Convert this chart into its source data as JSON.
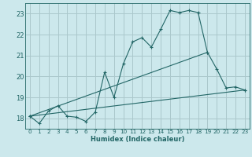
{
  "title": "",
  "xlabel": "Humidex (Indice chaleur)",
  "ylabel": "",
  "background_color": "#cce8ec",
  "grid_color": "#aac8cc",
  "line_color": "#226666",
  "xlim": [
    -0.5,
    23.5
  ],
  "ylim": [
    17.5,
    23.5
  ],
  "yticks": [
    18,
    19,
    20,
    21,
    22,
    23
  ],
  "xticks": [
    0,
    1,
    2,
    3,
    4,
    5,
    6,
    7,
    8,
    9,
    10,
    11,
    12,
    13,
    14,
    15,
    16,
    17,
    18,
    19,
    20,
    21,
    22,
    23
  ],
  "series": [
    {
      "x": [
        0,
        1,
        2,
        3,
        4,
        5,
        6,
        7,
        8,
        9,
        10,
        11,
        12,
        13,
        14,
        15,
        16,
        17,
        18,
        19,
        20,
        21,
        22,
        23
      ],
      "y": [
        18.1,
        17.75,
        18.35,
        18.6,
        18.1,
        18.05,
        17.85,
        18.3,
        20.2,
        19.0,
        20.6,
        21.65,
        21.85,
        21.4,
        22.25,
        23.15,
        23.05,
        23.15,
        23.05,
        21.15,
        20.35,
        19.45,
        19.5,
        19.35
      ]
    },
    {
      "x": [
        0,
        23
      ],
      "y": [
        18.1,
        19.35
      ]
    },
    {
      "x": [
        0,
        19
      ],
      "y": [
        18.1,
        21.15
      ]
    }
  ]
}
